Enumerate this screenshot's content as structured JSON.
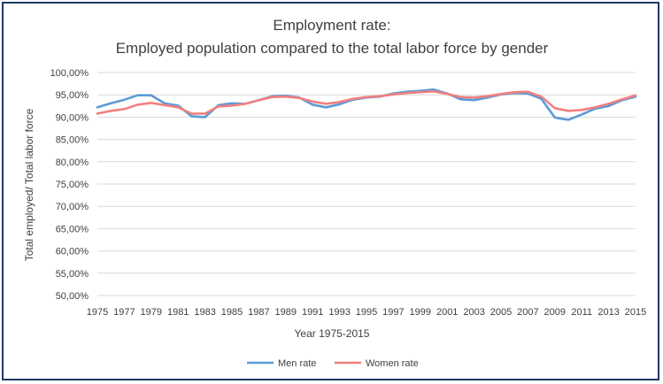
{
  "chart_data": {
    "type": "line",
    "title": "Employment rate:",
    "subtitle": "Employed population compared to the total labor force by gender",
    "xlabel": "Year 1975-2015",
    "ylabel": "Total employed/ Total labor force",
    "ylim": [
      50,
      100
    ],
    "y_step": 5,
    "y_tick_labels": [
      "50,00%",
      "55,00%",
      "60,00%",
      "65,00%",
      "70,00%",
      "75,00%",
      "80,00%",
      "85,00%",
      "90,00%",
      "95,00%",
      "100,00%"
    ],
    "x_tick_labels": [
      "1975",
      "1977",
      "1979",
      "1981",
      "1983",
      "1985",
      "1987",
      "1989",
      "1991",
      "1993",
      "1995",
      "1997",
      "1999",
      "2001",
      "2003",
      "2005",
      "2007",
      "2009",
      "2011",
      "2013",
      "2015"
    ],
    "grid": true,
    "legend_position": "bottom",
    "x": [
      1975,
      1976,
      1977,
      1978,
      1979,
      1980,
      1981,
      1982,
      1983,
      1984,
      1985,
      1986,
      1987,
      1988,
      1989,
      1990,
      1991,
      1992,
      1993,
      1994,
      1995,
      1996,
      1997,
      1998,
      1999,
      2000,
      2001,
      2002,
      2003,
      2004,
      2005,
      2006,
      2007,
      2008,
      2009,
      2010,
      2011,
      2012,
      2013,
      2014,
      2015
    ],
    "series": [
      {
        "name": "Men rate",
        "color": "#5b9bd5",
        "values": [
          92.2,
          93.1,
          93.9,
          94.9,
          94.9,
          93.1,
          92.6,
          90.2,
          90.0,
          92.7,
          93.1,
          93.0,
          93.8,
          94.7,
          94.8,
          94.4,
          92.8,
          92.2,
          92.9,
          93.9,
          94.4,
          94.6,
          95.3,
          95.7,
          95.9,
          96.2,
          95.3,
          94.0,
          93.8,
          94.4,
          95.1,
          95.4,
          95.3,
          94.1,
          89.9,
          89.4,
          90.6,
          91.9,
          92.5,
          93.8,
          94.6
        ]
      },
      {
        "name": "Women rate",
        "color": "#f08080",
        "values": [
          90.8,
          91.4,
          91.8,
          92.8,
          93.2,
          92.7,
          92.2,
          90.8,
          90.8,
          92.4,
          92.6,
          93.0,
          93.8,
          94.5,
          94.6,
          94.3,
          93.5,
          93.0,
          93.4,
          94.1,
          94.5,
          94.7,
          95.1,
          95.4,
          95.6,
          95.8,
          95.2,
          94.5,
          94.4,
          94.7,
          95.2,
          95.6,
          95.7,
          94.6,
          92.0,
          91.4,
          91.6,
          92.2,
          93.0,
          94.0,
          94.9
        ]
      }
    ]
  }
}
